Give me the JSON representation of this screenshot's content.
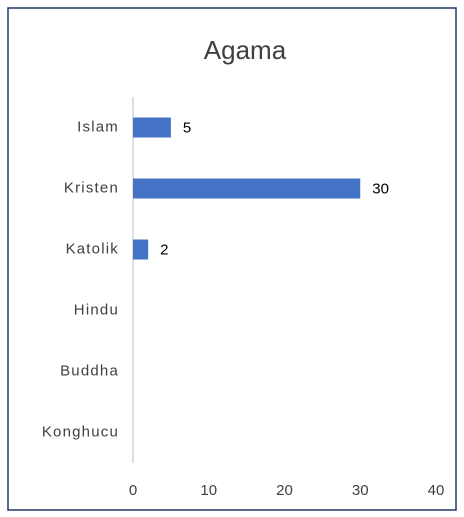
{
  "chart_data": {
    "type": "bar",
    "orientation": "horizontal",
    "title": "Agama",
    "categories": [
      "Islam",
      "Kristen",
      "Katolik",
      "Hindu",
      "Buddha",
      "Konghucu"
    ],
    "values": [
      5,
      30,
      2,
      null,
      null,
      null
    ],
    "color": "#4472c4",
    "xlim": [
      0,
      40
    ],
    "xticks": [
      0,
      10,
      20,
      30,
      40
    ],
    "grid": false
  }
}
